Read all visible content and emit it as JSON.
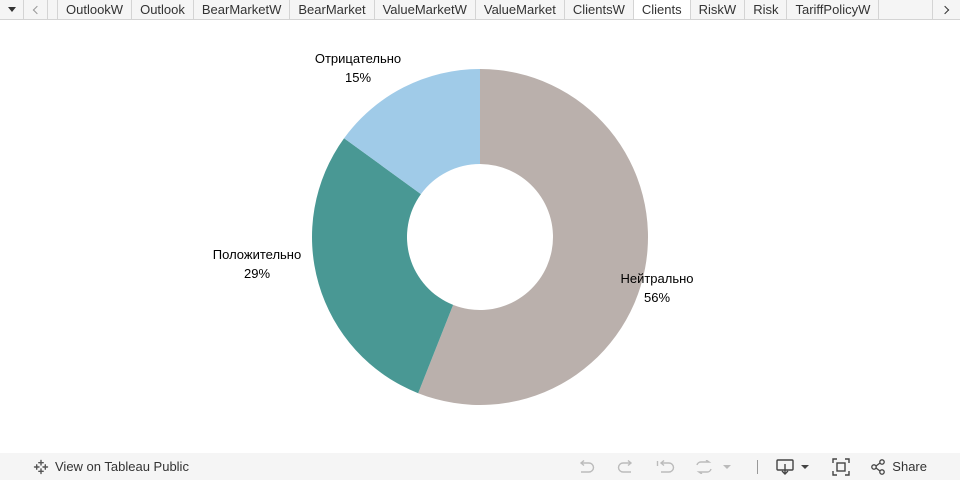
{
  "tabs": {
    "items": [
      "OutlookW",
      "Outlook",
      "BearMarketW",
      "BearMarket",
      "ValueMarketW",
      "ValueMarket",
      "ClientsW",
      "Clients",
      "RiskW",
      "Risk",
      "TariffPolicyW"
    ],
    "active": "Clients"
  },
  "chart_data": {
    "type": "pie",
    "donut": true,
    "title": "",
    "slices": [
      {
        "label": "Нейтрально",
        "percent_label": "56%",
        "value": 56,
        "color": "#bab0ac"
      },
      {
        "label": "Положительно",
        "percent_label": "29%",
        "value": 29,
        "color": "#499894"
      },
      {
        "label": "Отрицательно",
        "percent_label": "15%",
        "value": 15,
        "color": "#a0cbe8"
      }
    ]
  },
  "toolbar": {
    "view_label": "View on Tableau Public",
    "share_label": "Share"
  }
}
